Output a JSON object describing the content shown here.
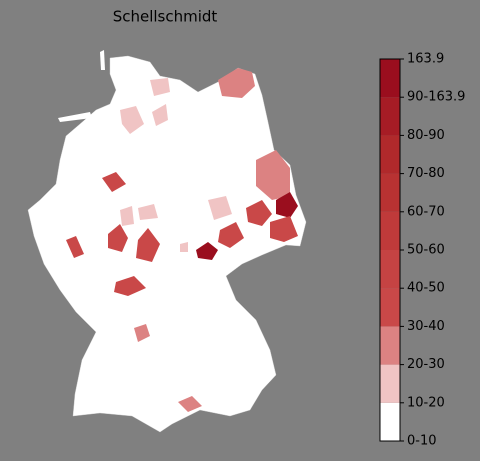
{
  "title": "Schellschmidt",
  "colorbar": {
    "labels": [
      "0-10",
      "10-20",
      "20-30",
      "30-40",
      "40-50",
      "50-60",
      "60-70",
      "70-80",
      "80-90",
      "90-163.9",
      "163.9"
    ],
    "colors": [
      "#ffffff",
      "#f0c4c4",
      "#dc8282",
      "#c94848",
      "#c54343",
      "#bf3a3a",
      "#b83232",
      "#b0292b",
      "#a61c25",
      "#9a0e1e"
    ]
  }
}
